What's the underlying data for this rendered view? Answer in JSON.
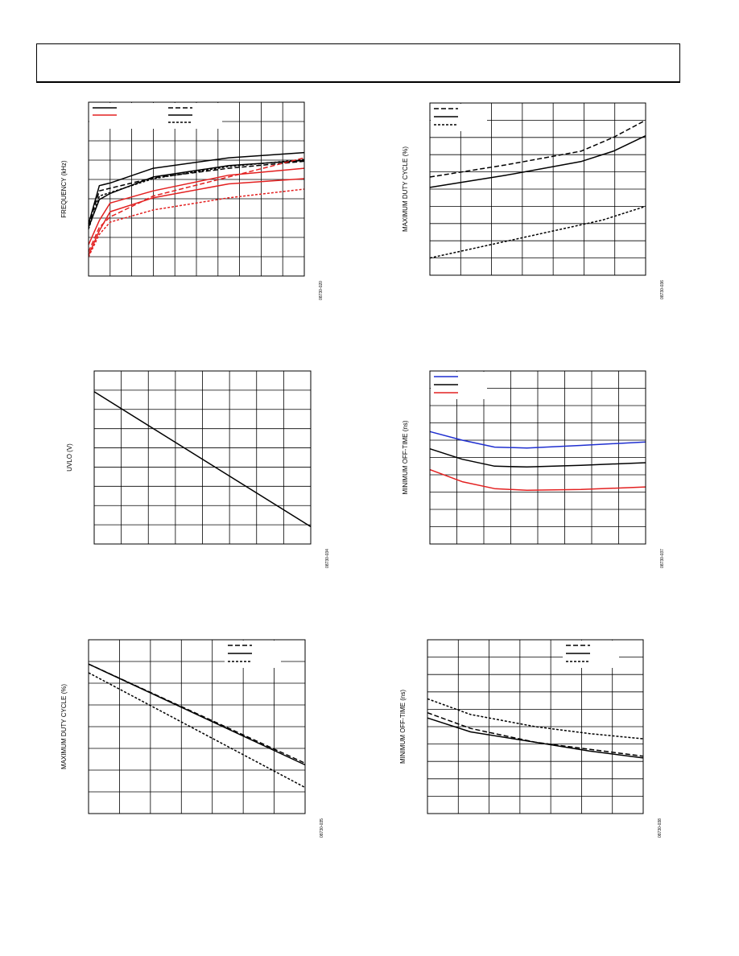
{
  "header": {
    "text": ""
  },
  "colors": {
    "black": "#000000",
    "red": "#e32020",
    "blue": "#1f2fd0"
  },
  "chart_data": [
    {
      "id": "c1",
      "type": "line",
      "ylabel": "FREQUENCY (kHz)",
      "fig_id": "08730-020",
      "xlim": [
        0,
        100
      ],
      "ylim": [
        0,
        100
      ],
      "x_divisions": 10,
      "y_divisions": 9,
      "grid": true,
      "legend": {
        "position": "top-left",
        "entries": [
          {
            "color": "#000000",
            "dash": "",
            "label": ""
          },
          {
            "color": "#e32020",
            "dash": "",
            "label": ""
          },
          {
            "color": "#000000",
            "dash": "6,3",
            "label": ""
          },
          {
            "color": "#000000",
            "dash": "",
            "label": ""
          },
          {
            "color": "#000000",
            "dash": "3,2",
            "label": ""
          }
        ]
      },
      "series": [
        {
          "color": "#000000",
          "dash": "",
          "x": [
            0,
            5,
            10,
            30,
            65,
            100
          ],
          "y": [
            30,
            52,
            53.5,
            62,
            68,
            71
          ]
        },
        {
          "color": "#000000",
          "dash": "6,3",
          "x": [
            0,
            5,
            10,
            30,
            65,
            100
          ],
          "y": [
            29,
            49,
            50.5,
            56.5,
            62,
            66
          ]
        },
        {
          "color": "#000000",
          "dash": "",
          "x": [
            0,
            5,
            10,
            30,
            65,
            100
          ],
          "y": [
            28,
            44,
            47.5,
            57,
            63.5,
            66.5
          ]
        },
        {
          "color": "#000000",
          "dash": "3,2",
          "x": [
            0,
            5,
            10,
            30,
            65,
            100
          ],
          "y": [
            27,
            46,
            48,
            56,
            63,
            67
          ]
        },
        {
          "color": "#e32020",
          "dash": "",
          "x": [
            0,
            5,
            10,
            30,
            65,
            100
          ],
          "y": [
            18,
            32,
            42,
            49,
            58,
            62
          ]
        },
        {
          "color": "#e32020",
          "dash": "6,3",
          "x": [
            0,
            5,
            10,
            30,
            65,
            100
          ],
          "y": [
            14,
            28,
            34,
            46,
            57,
            68
          ]
        },
        {
          "color": "#e32020",
          "dash": "",
          "x": [
            0,
            5,
            10,
            30,
            65,
            100
          ],
          "y": [
            12,
            26,
            37,
            45,
            53,
            56
          ]
        },
        {
          "color": "#e32020",
          "dash": "3,2",
          "x": [
            0,
            5,
            10,
            30,
            65,
            100
          ],
          "y": [
            11,
            24,
            31,
            38,
            45,
            50
          ]
        }
      ]
    },
    {
      "id": "c2",
      "type": "line",
      "ylabel": "MAXIMUM DUTY CYCLE (%)",
      "fig_id": "08730-036",
      "xlim": [
        0,
        100
      ],
      "ylim": [
        0,
        100
      ],
      "x_divisions": 7,
      "y_divisions": 10,
      "grid": true,
      "legend": {
        "position": "top-left",
        "entries": [
          {
            "color": "#000000",
            "dash": "6,3",
            "label": ""
          },
          {
            "color": "#000000",
            "dash": "",
            "label": ""
          },
          {
            "color": "#000000",
            "dash": "3,2",
            "label": ""
          }
        ]
      },
      "series": [
        {
          "color": "#000000",
          "dash": "6,3",
          "x": [
            0,
            35,
            70,
            85,
            100
          ],
          "y": [
            57,
            64,
            72,
            80,
            90
          ]
        },
        {
          "color": "#000000",
          "dash": "",
          "x": [
            0,
            35,
            70,
            85,
            100
          ],
          "y": [
            51,
            58,
            66,
            72,
            81
          ]
        },
        {
          "color": "#000000",
          "dash": "3,2",
          "x": [
            0,
            40,
            80,
            100
          ],
          "y": [
            10,
            21,
            32,
            40
          ]
        }
      ]
    },
    {
      "id": "c3",
      "type": "line",
      "ylabel": "UVLO (V)",
      "fig_id": "08730-034",
      "xlim": [
        0,
        100
      ],
      "ylim": [
        0,
        100
      ],
      "x_divisions": 8,
      "y_divisions": 9,
      "grid": true,
      "legend": null,
      "series": [
        {
          "color": "#000000",
          "dash": "",
          "x": [
            0,
            100
          ],
          "y": [
            88,
            10
          ]
        }
      ]
    },
    {
      "id": "c4",
      "type": "line",
      "ylabel": "MINIMUM OFF-TIME (ns)",
      "fig_id": "08730-037",
      "xlim": [
        0,
        100
      ],
      "ylim": [
        0,
        100
      ],
      "x_divisions": 8,
      "y_divisions": 10,
      "grid": true,
      "legend": {
        "position": "top-left",
        "entries": [
          {
            "color": "#1f2fd0",
            "dash": "",
            "label": ""
          },
          {
            "color": "#000000",
            "dash": "",
            "label": ""
          },
          {
            "color": "#e32020",
            "dash": "",
            "label": ""
          }
        ]
      },
      "series": [
        {
          "color": "#1f2fd0",
          "dash": "",
          "x": [
            0,
            15,
            30,
            45,
            70,
            100
          ],
          "y": [
            65,
            60,
            56,
            55.5,
            57,
            59
          ]
        },
        {
          "color": "#000000",
          "dash": "",
          "x": [
            0,
            15,
            30,
            45,
            70,
            100
          ],
          "y": [
            55,
            49,
            45,
            44.5,
            45.5,
            47
          ]
        },
        {
          "color": "#e32020",
          "dash": "",
          "x": [
            0,
            15,
            30,
            45,
            70,
            100
          ],
          "y": [
            43,
            36,
            32,
            31,
            31.5,
            33
          ]
        }
      ]
    },
    {
      "id": "c5",
      "type": "line",
      "ylabel": "MAXIMUM DUTY CYCLE (%)",
      "fig_id": "08730-035",
      "xlim": [
        0,
        100
      ],
      "ylim": [
        0,
        100
      ],
      "x_divisions": 7,
      "y_divisions": 8,
      "grid": true,
      "legend": {
        "position": "top-right",
        "entries": [
          {
            "color": "#000000",
            "dash": "6,3",
            "label": ""
          },
          {
            "color": "#000000",
            "dash": "",
            "label": ""
          },
          {
            "color": "#000000",
            "dash": "3,2",
            "label": ""
          }
        ]
      },
      "series": [
        {
          "color": "#000000",
          "dash": "6,3",
          "x": [
            0,
            100
          ],
          "y": [
            86,
            29
          ]
        },
        {
          "color": "#000000",
          "dash": "",
          "x": [
            0,
            100
          ],
          "y": [
            86,
            28
          ]
        },
        {
          "color": "#000000",
          "dash": "3,2",
          "x": [
            0,
            100
          ],
          "y": [
            81,
            15
          ]
        }
      ]
    },
    {
      "id": "c6",
      "type": "line",
      "ylabel": "MINIMUM OFF-TIME (ns)",
      "fig_id": "08730-038",
      "xlim": [
        0,
        100
      ],
      "ylim": [
        0,
        100
      ],
      "x_divisions": 7,
      "y_divisions": 10,
      "grid": true,
      "legend": {
        "position": "top-right",
        "entries": [
          {
            "color": "#000000",
            "dash": "6,3",
            "label": ""
          },
          {
            "color": "#000000",
            "dash": "",
            "label": ""
          },
          {
            "color": "#000000",
            "dash": "3,2",
            "label": ""
          }
        ]
      },
      "series": [
        {
          "color": "#000000",
          "dash": "3,2",
          "x": [
            0,
            20,
            50,
            75,
            100
          ],
          "y": [
            66,
            57,
            50,
            46,
            43
          ]
        },
        {
          "color": "#000000",
          "dash": "6,3",
          "x": [
            0,
            20,
            50,
            75,
            100
          ],
          "y": [
            58,
            49,
            41,
            37,
            33
          ]
        },
        {
          "color": "#000000",
          "dash": "",
          "x": [
            0,
            20,
            50,
            75,
            100
          ],
          "y": [
            55,
            47,
            41,
            36,
            32
          ]
        }
      ]
    }
  ]
}
